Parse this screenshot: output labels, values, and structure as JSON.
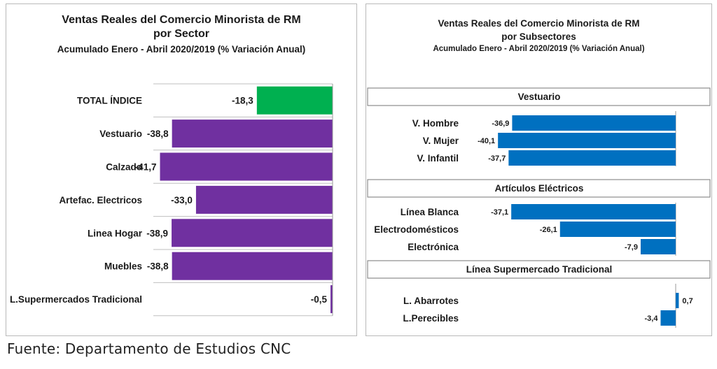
{
  "footer": {
    "source": "Fuente: Departamento de Estudios CNC"
  },
  "colors": {
    "total": "#00b050",
    "sector": "#7030a0",
    "subsector": "#0070c0"
  },
  "chart_data": [
    {
      "type": "bar",
      "orientation": "horizontal",
      "title": "Ventas Reales del Comercio Minorista de RM",
      "subtitle_1": "por Sector",
      "subtitle_2": "Acumulado Enero - Abril 2020/2019 (% Variación Anual)",
      "categories": [
        "TOTAL ÍNDICE",
        "Vestuario",
        "Calzado",
        "Artefac. Electricos",
        "Linea Hogar",
        "Muebles",
        "L.Supermercados Tradicional"
      ],
      "values": [
        -18.3,
        -38.8,
        -41.7,
        -33.0,
        -38.9,
        -38.8,
        -0.5
      ],
      "value_labels": [
        "-18,3",
        "-38,8",
        "-41,7",
        "-33,0",
        "-38,9",
        "-38,8",
        "-0,5"
      ],
      "highlight_index": 0,
      "xlim": [
        -45,
        0
      ],
      "grid": true
    },
    {
      "type": "bar",
      "orientation": "horizontal",
      "title": "Ventas Reales del Comercio Minorista de RM",
      "subtitle_1": "por Subsectores",
      "subtitle_2": "Acumulado Enero - Abril 2020/2019 (% Variación Anual)",
      "xlim": [
        -45,
        1.3
      ],
      "groups": [
        {
          "name": "Vestuario",
          "categories": [
            "V. Hombre",
            "V. Mujer",
            "V. Infantil"
          ],
          "values": [
            -36.9,
            -40.1,
            -37.7
          ],
          "value_labels": [
            "-36,9",
            "-40,1",
            "-37,7"
          ]
        },
        {
          "name": "Artículos Eléctricos",
          "categories": [
            "Línea Blanca",
            "Electrodomésticos",
            "Electrónica"
          ],
          "values": [
            -37.1,
            -26.1,
            -7.9
          ],
          "value_labels": [
            "-37,1",
            "-26,1",
            "-7,9"
          ]
        },
        {
          "name": "Línea  Supermercado Tradicional",
          "categories": [
            "L. Abarrotes",
            "L.Perecibles"
          ],
          "values": [
            0.7,
            -3.4
          ],
          "value_labels": [
            "0,7",
            "-3,4"
          ]
        }
      ]
    }
  ]
}
